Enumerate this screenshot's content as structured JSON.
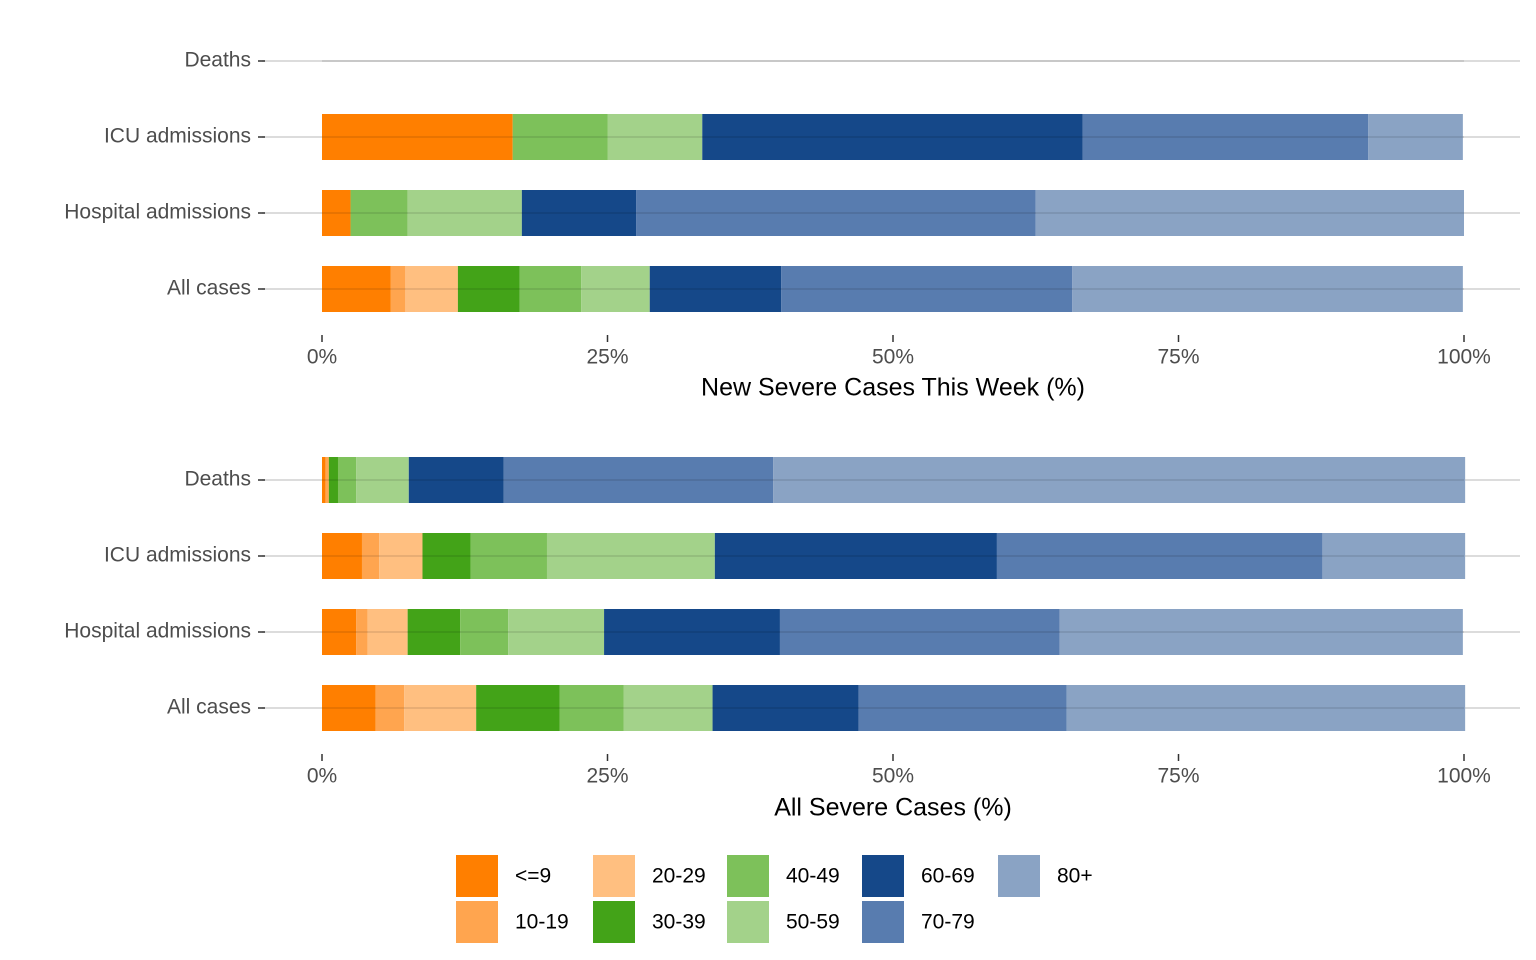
{
  "chart_data": [
    {
      "type": "stacked-barh",
      "categories": [
        "Deaths",
        "ICU admissions",
        "Hospital admissions",
        "All cases"
      ],
      "series": [
        {
          "name": "<=9",
          "color": "#ff7f00",
          "values": [
            0,
            16.7,
            2.5,
            6.0
          ]
        },
        {
          "name": "10-19",
          "color": "#ffa54f",
          "values": [
            0,
            0,
            0,
            1.3
          ]
        },
        {
          "name": "20-29",
          "color": "#ffbf80",
          "values": [
            0,
            0,
            0,
            4.6
          ]
        },
        {
          "name": "30-39",
          "color": "#43a318",
          "values": [
            0,
            0,
            0,
            5.4
          ]
        },
        {
          "name": "40-49",
          "color": "#7dc15a",
          "values": [
            0,
            8.3,
            5.0,
            5.4
          ]
        },
        {
          "name": "50-59",
          "color": "#a3d28a",
          "values": [
            0,
            8.3,
            10.0,
            6.0
          ]
        },
        {
          "name": "60-69",
          "color": "#154889",
          "values": [
            0,
            33.3,
            10.0,
            11.5
          ]
        },
        {
          "name": "70-79",
          "color": "#587caf",
          "values": [
            0,
            25.0,
            35.0,
            25.5
          ]
        },
        {
          "name": "80+",
          "color": "#8aa3c4",
          "values": [
            0,
            8.3,
            37.5,
            34.2
          ]
        }
      ],
      "xlabel": "New Severe Cases This Week (%)",
      "xlim": [
        0,
        100
      ],
      "xticks": [
        {
          "value": 0,
          "label": "0%"
        },
        {
          "value": 25,
          "label": "25%"
        },
        {
          "value": 50,
          "label": "50%"
        },
        {
          "value": 75,
          "label": "75%"
        },
        {
          "value": 100,
          "label": "100%"
        }
      ]
    },
    {
      "type": "stacked-barh",
      "categories": [
        "Deaths",
        "ICU admissions",
        "Hospital admissions",
        "All cases"
      ],
      "series": [
        {
          "name": "<=9",
          "color": "#ff7f00",
          "values": [
            0.3,
            3.5,
            3.0,
            4.7
          ]
        },
        {
          "name": "10-19",
          "color": "#ffa54f",
          "values": [
            0.3,
            1.5,
            1.0,
            2.5
          ]
        },
        {
          "name": "20-29",
          "color": "#ffbf80",
          "values": [
            0,
            3.8,
            3.5,
            6.3
          ]
        },
        {
          "name": "30-39",
          "color": "#43a318",
          "values": [
            0.8,
            4.2,
            4.6,
            7.3
          ]
        },
        {
          "name": "40-49",
          "color": "#7dc15a",
          "values": [
            1.6,
            6.7,
            4.2,
            5.6
          ]
        },
        {
          "name": "50-59",
          "color": "#a3d28a",
          "values": [
            4.6,
            14.7,
            8.4,
            7.8
          ]
        },
        {
          "name": "60-69",
          "color": "#154889",
          "values": [
            8.3,
            24.7,
            15.4,
            12.8
          ]
        },
        {
          "name": "70-79",
          "color": "#587caf",
          "values": [
            23.6,
            28.5,
            24.5,
            18.2
          ]
        },
        {
          "name": "80+",
          "color": "#8aa3c4",
          "values": [
            60.6,
            12.5,
            35.3,
            34.9
          ]
        }
      ],
      "xlabel": "All Severe Cases (%)",
      "xlim": [
        0,
        100
      ],
      "xticks": [
        {
          "value": 0,
          "label": "0%"
        },
        {
          "value": 25,
          "label": "25%"
        },
        {
          "value": 50,
          "label": "50%"
        },
        {
          "value": 75,
          "label": "75%"
        },
        {
          "value": 100,
          "label": "100%"
        }
      ]
    }
  ]
}
